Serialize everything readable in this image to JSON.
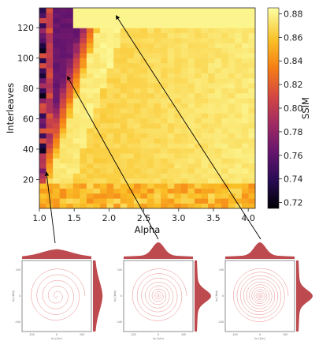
{
  "chart_data": [
    {
      "type": "heatmap",
      "title": "",
      "xlabel": "Alpha",
      "ylabel": "Interleaves",
      "x_ticks": [
        "1.0",
        "1.5",
        "2.0",
        "2.5",
        "3.0",
        "3.5",
        "4.0"
      ],
      "y_ticks": [
        "20",
        "40",
        "60",
        "80",
        "100",
        "120"
      ],
      "xlim": [
        1.0,
        4.1
      ],
      "ylim": [
        1,
        133
      ],
      "grid": false,
      "colorbar": {
        "label": "SSIM",
        "colormap": "inferno",
        "range": [
          0.715,
          0.885
        ],
        "ticks": [
          "0.72",
          "0.74",
          "0.76",
          "0.78",
          "0.80",
          "0.82",
          "0.84",
          "0.86",
          "0.88"
        ]
      },
      "description_values": {
        "ssim_max": 0.885,
        "ssim_min": 0.715,
        "low_ssim_region": "alpha near 1.0 with high interleaves"
      },
      "annotations": [
        {
          "from_panel": 1,
          "to": {
            "alpha": 1.1,
            "interleaves": 25
          }
        },
        {
          "from_panel": 2,
          "to": {
            "alpha": 1.4,
            "interleaves": 88
          }
        },
        {
          "from_panel": 3,
          "to": {
            "alpha": 2.1,
            "interleaves": 128
          }
        }
      ]
    },
    {
      "type": "scatter",
      "description": "k-space spiral trajectories with marginal density plots",
      "panels": [
        {
          "xlabel": "kx (1/m)",
          "ylabel": "ky (1/m)",
          "x_ticks": [
            "-100",
            "0",
            "100"
          ],
          "y_ticks": [
            "100",
            "0",
            "-100"
          ],
          "turns": 5
        },
        {
          "xlabel": "kx (1/m)",
          "ylabel": "ky (1/m)",
          "x_ticks": [
            "-100",
            "0",
            "100"
          ],
          "y_ticks": [
            "100",
            "0",
            "-100"
          ],
          "turns": 9
        },
        {
          "xlabel": "kx (1/m)",
          "ylabel": "ky (1/m)",
          "x_ticks": [
            "-100",
            "0",
            "100"
          ],
          "y_ticks": [
            "100",
            "0",
            "-100"
          ],
          "turns": 12
        }
      ]
    }
  ],
  "colors": {
    "trajectory": "#e26a6a",
    "marginal": "#b22a30",
    "arrow": "#000000"
  }
}
